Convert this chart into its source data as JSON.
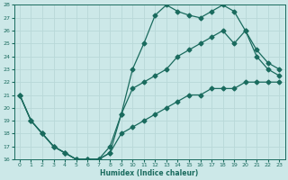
{
  "xlabel": "Humidex (Indice chaleur)",
  "bg_color": "#cce8e8",
  "line_color": "#1a6b5e",
  "grid_color": "#b8d8d8",
  "xlim": [
    -0.5,
    23.5
  ],
  "ylim": [
    16,
    28
  ],
  "xticks": [
    0,
    1,
    2,
    3,
    4,
    5,
    6,
    7,
    8,
    9,
    10,
    11,
    12,
    13,
    14,
    15,
    16,
    17,
    18,
    19,
    20,
    21,
    22,
    23
  ],
  "yticks": [
    16,
    17,
    18,
    19,
    20,
    21,
    22,
    23,
    24,
    25,
    26,
    27,
    28
  ],
  "line1_x": [
    0,
    1,
    2,
    3,
    4,
    5,
    6,
    7,
    8,
    9,
    10,
    11,
    12,
    13,
    14,
    15,
    16,
    17,
    18,
    19,
    20,
    21,
    22,
    23
  ],
  "line1_y": [
    21,
    19,
    18,
    17,
    16.5,
    16,
    16,
    16,
    16.5,
    18,
    18.5,
    19,
    19.5,
    20,
    20.5,
    21,
    21,
    21.5,
    21.5,
    21.5,
    22,
    22,
    22,
    22
  ],
  "line2_x": [
    0,
    1,
    2,
    3,
    4,
    5,
    6,
    7,
    8,
    9,
    10,
    11,
    12,
    13,
    14,
    15,
    16,
    17,
    18,
    19,
    20,
    21,
    22,
    23
  ],
  "line2_y": [
    21,
    19,
    18,
    17,
    16.5,
    16,
    16,
    16,
    17,
    19.5,
    23,
    25,
    27.2,
    28,
    27.5,
    27.2,
    27,
    27.5,
    28,
    27.5,
    26,
    24,
    23,
    22.5
  ],
  "line3_x": [
    0,
    1,
    2,
    3,
    4,
    5,
    6,
    7,
    8,
    9,
    10,
    11,
    12,
    13,
    14,
    15,
    16,
    17,
    18,
    19,
    20,
    21,
    22,
    23
  ],
  "line3_y": [
    21,
    19,
    18,
    17,
    16.5,
    16,
    16,
    16,
    16.5,
    19.5,
    21.5,
    22,
    22.5,
    23,
    24,
    24.5,
    25,
    25.5,
    26,
    25,
    26,
    24.5,
    23.5,
    23
  ]
}
